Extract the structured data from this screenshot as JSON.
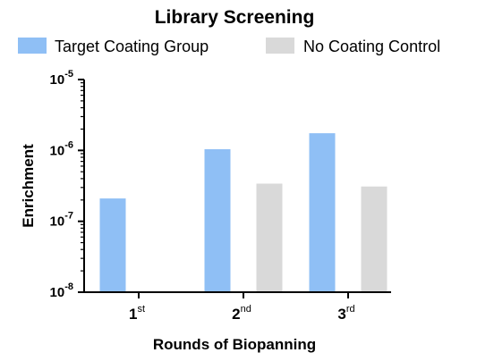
{
  "chart_data": {
    "type": "bar",
    "title": "Library Screening",
    "xlabel": "Rounds of Biopanning",
    "ylabel": "Enrichment",
    "yscale": "log",
    "ylim": [
      1e-08,
      1e-05
    ],
    "yticks": [
      {
        "value": 1e-05,
        "base": "10",
        "exp": "-5"
      },
      {
        "value": 1e-06,
        "base": "10",
        "exp": "-6"
      },
      {
        "value": 1e-07,
        "base": "10",
        "exp": "-7"
      },
      {
        "value": 1e-08,
        "base": "10",
        "exp": "-8"
      }
    ],
    "categories": [
      {
        "main": "1",
        "sup": "st"
      },
      {
        "main": "2",
        "sup": "nd"
      },
      {
        "main": "3",
        "sup": "rd"
      }
    ],
    "series": [
      {
        "name": "Target Coating Group",
        "color": "#8fbff5",
        "values": [
          2.1e-07,
          1.04e-06,
          1.75e-06
        ]
      },
      {
        "name": "No Coating Control",
        "color": "#d9d9d9",
        "values": [
          null,
          3.4e-07,
          3.1e-07
        ]
      }
    ],
    "legend": "top"
  }
}
